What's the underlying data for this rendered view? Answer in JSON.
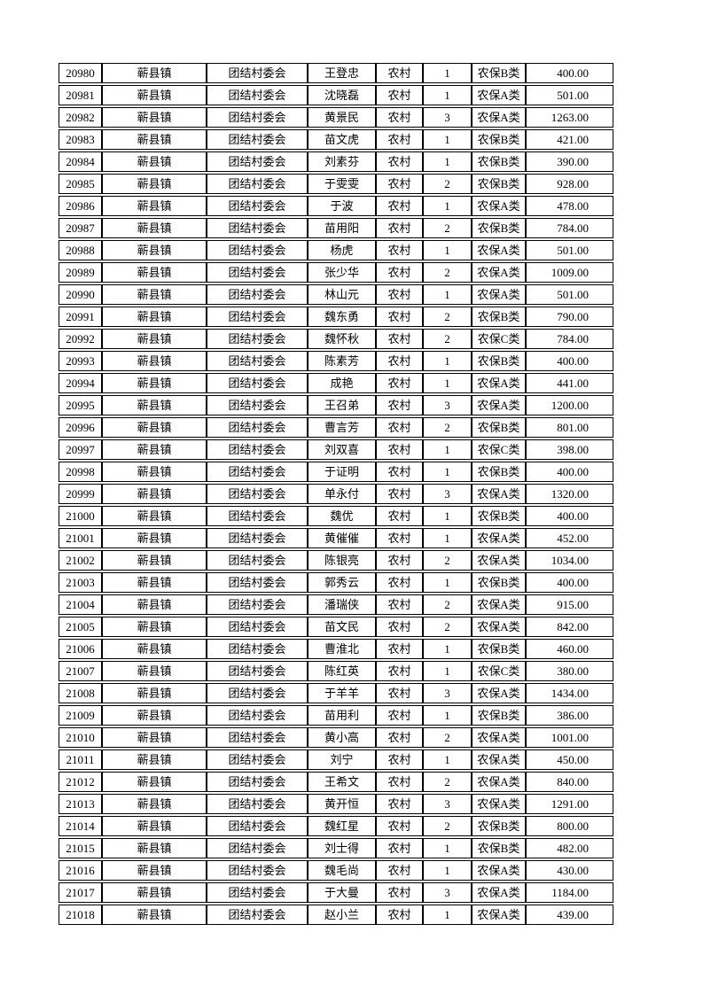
{
  "page": {
    "background_color": "#ffffff",
    "text_color": "#000000",
    "border_color": "#000000"
  },
  "table": {
    "column_names": [
      "record-id",
      "town",
      "village-committee",
      "person-name",
      "residence-type",
      "person-count",
      "insurance-category",
      "amount"
    ],
    "rows": [
      [
        "20980",
        "蕲县镇",
        "团结村委会",
        "王登忠",
        "农村",
        "1",
        "农保B类",
        "400.00"
      ],
      [
        "20981",
        "蕲县镇",
        "团结村委会",
        "沈晓磊",
        "农村",
        "1",
        "农保A类",
        "501.00"
      ],
      [
        "20982",
        "蕲县镇",
        "团结村委会",
        "黄景民",
        "农村",
        "3",
        "农保A类",
        "1263.00"
      ],
      [
        "20983",
        "蕲县镇",
        "团结村委会",
        "苗文虎",
        "农村",
        "1",
        "农保B类",
        "421.00"
      ],
      [
        "20984",
        "蕲县镇",
        "团结村委会",
        "刘素芬",
        "农村",
        "1",
        "农保B类",
        "390.00"
      ],
      [
        "20985",
        "蕲县镇",
        "团结村委会",
        "于雯雯",
        "农村",
        "2",
        "农保B类",
        "928.00"
      ],
      [
        "20986",
        "蕲县镇",
        "团结村委会",
        "于波",
        "农村",
        "1",
        "农保A类",
        "478.00"
      ],
      [
        "20987",
        "蕲县镇",
        "团结村委会",
        "苗用阳",
        "农村",
        "2",
        "农保B类",
        "784.00"
      ],
      [
        "20988",
        "蕲县镇",
        "团结村委会",
        "杨虎",
        "农村",
        "1",
        "农保A类",
        "501.00"
      ],
      [
        "20989",
        "蕲县镇",
        "团结村委会",
        "张少华",
        "农村",
        "2",
        "农保A类",
        "1009.00"
      ],
      [
        "20990",
        "蕲县镇",
        "团结村委会",
        "林山元",
        "农村",
        "1",
        "农保A类",
        "501.00"
      ],
      [
        "20991",
        "蕲县镇",
        "团结村委会",
        "魏东勇",
        "农村",
        "2",
        "农保B类",
        "790.00"
      ],
      [
        "20992",
        "蕲县镇",
        "团结村委会",
        "魏怀秋",
        "农村",
        "2",
        "农保C类",
        "784.00"
      ],
      [
        "20993",
        "蕲县镇",
        "团结村委会",
        "陈素芳",
        "农村",
        "1",
        "农保B类",
        "400.00"
      ],
      [
        "20994",
        "蕲县镇",
        "团结村委会",
        "成艳",
        "农村",
        "1",
        "农保A类",
        "441.00"
      ],
      [
        "20995",
        "蕲县镇",
        "团结村委会",
        "王召弟",
        "农村",
        "3",
        "农保A类",
        "1200.00"
      ],
      [
        "20996",
        "蕲县镇",
        "团结村委会",
        "曹言芳",
        "农村",
        "2",
        "农保B类",
        "801.00"
      ],
      [
        "20997",
        "蕲县镇",
        "团结村委会",
        "刘双喜",
        "农村",
        "1",
        "农保C类",
        "398.00"
      ],
      [
        "20998",
        "蕲县镇",
        "团结村委会",
        "于证明",
        "农村",
        "1",
        "农保B类",
        "400.00"
      ],
      [
        "20999",
        "蕲县镇",
        "团结村委会",
        "单永付",
        "农村",
        "3",
        "农保A类",
        "1320.00"
      ],
      [
        "21000",
        "蕲县镇",
        "团结村委会",
        "魏优",
        "农村",
        "1",
        "农保B类",
        "400.00"
      ],
      [
        "21001",
        "蕲县镇",
        "团结村委会",
        "黄催催",
        "农村",
        "1",
        "农保A类",
        "452.00"
      ],
      [
        "21002",
        "蕲县镇",
        "团结村委会",
        "陈银亮",
        "农村",
        "2",
        "农保A类",
        "1034.00"
      ],
      [
        "21003",
        "蕲县镇",
        "团结村委会",
        "郭秀云",
        "农村",
        "1",
        "农保B类",
        "400.00"
      ],
      [
        "21004",
        "蕲县镇",
        "团结村委会",
        "潘瑞侠",
        "农村",
        "2",
        "农保A类",
        "915.00"
      ],
      [
        "21005",
        "蕲县镇",
        "团结村委会",
        "苗文民",
        "农村",
        "2",
        "农保A类",
        "842.00"
      ],
      [
        "21006",
        "蕲县镇",
        "团结村委会",
        "曹淮北",
        "农村",
        "1",
        "农保B类",
        "460.00"
      ],
      [
        "21007",
        "蕲县镇",
        "团结村委会",
        "陈红英",
        "农村",
        "1",
        "农保C类",
        "380.00"
      ],
      [
        "21008",
        "蕲县镇",
        "团结村委会",
        "于羊羊",
        "农村",
        "3",
        "农保A类",
        "1434.00"
      ],
      [
        "21009",
        "蕲县镇",
        "团结村委会",
        "苗用利",
        "农村",
        "1",
        "农保B类",
        "386.00"
      ],
      [
        "21010",
        "蕲县镇",
        "团结村委会",
        "黄小高",
        "农村",
        "2",
        "农保A类",
        "1001.00"
      ],
      [
        "21011",
        "蕲县镇",
        "团结村委会",
        "刘宁",
        "农村",
        "1",
        "农保A类",
        "450.00"
      ],
      [
        "21012",
        "蕲县镇",
        "团结村委会",
        "王希文",
        "农村",
        "2",
        "农保A类",
        "840.00"
      ],
      [
        "21013",
        "蕲县镇",
        "团结村委会",
        "黄开恒",
        "农村",
        "3",
        "农保A类",
        "1291.00"
      ],
      [
        "21014",
        "蕲县镇",
        "团结村委会",
        "魏红星",
        "农村",
        "2",
        "农保B类",
        "800.00"
      ],
      [
        "21015",
        "蕲县镇",
        "团结村委会",
        "刘士得",
        "农村",
        "1",
        "农保B类",
        "482.00"
      ],
      [
        "21016",
        "蕲县镇",
        "团结村委会",
        "魏毛尚",
        "农村",
        "1",
        "农保A类",
        "430.00"
      ],
      [
        "21017",
        "蕲县镇",
        "团结村委会",
        "于大曼",
        "农村",
        "3",
        "农保A类",
        "1184.00"
      ],
      [
        "21018",
        "蕲县镇",
        "团结村委会",
        "赵小兰",
        "农村",
        "1",
        "农保A类",
        "439.00"
      ]
    ]
  }
}
